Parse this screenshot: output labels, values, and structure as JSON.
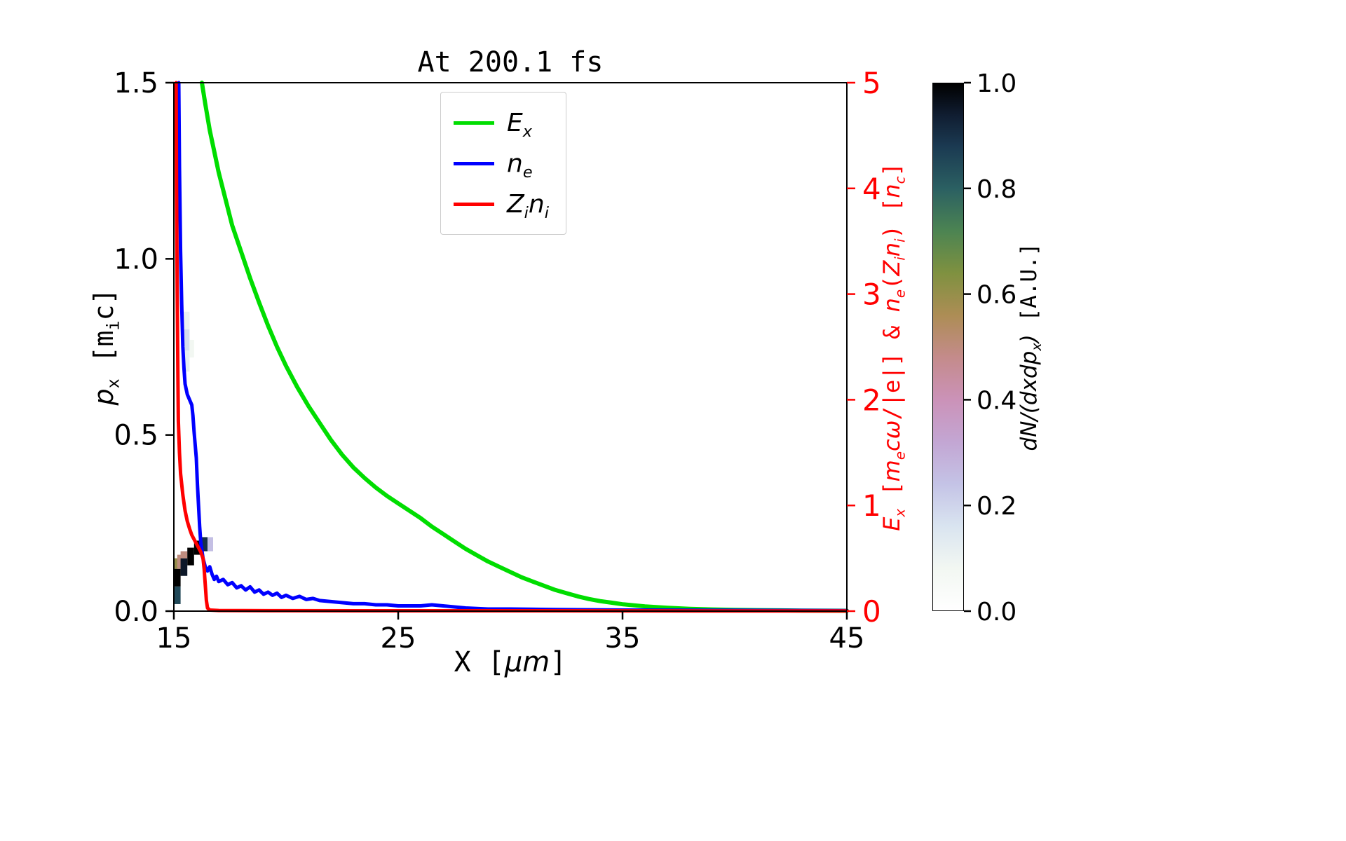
{
  "title": "At 200.1 fs",
  "axes": {
    "x": {
      "label_math": "X [*μm*]",
      "range": [
        15,
        45
      ],
      "tick_values": [
        15,
        25,
        35,
        45
      ],
      "tick_labels": [
        "15",
        "25",
        "35",
        "45"
      ]
    },
    "y_left": {
      "label_math": "*p*_{x} [m_{i}c]",
      "range": [
        0,
        1.5
      ],
      "tick_values": [
        0,
        0.5,
        1.0,
        1.5
      ],
      "tick_labels": [
        "0.0",
        "0.5",
        "1.0",
        "1.5"
      ]
    },
    "y_right": {
      "label_math": "*E_{x}* [*m_{e}cω*/|e|] & *n_{e}*(*Z_{i}n_{i}*) [*n_{c}*]",
      "range": [
        0,
        5
      ],
      "tick_values": [
        0,
        1,
        2,
        3,
        4,
        5
      ],
      "tick_labels": [
        "0",
        "1",
        "2",
        "3",
        "4",
        "5"
      ],
      "color": "#ff0000"
    }
  },
  "colorbar": {
    "label_math": "*dN/(dxdp_{x})* [A.U.]",
    "range": [
      0,
      1
    ],
    "tick_values": [
      0,
      0.2,
      0.4,
      0.6,
      0.8,
      1.0
    ],
    "tick_labels": [
      "0.0",
      "0.2",
      "0.4",
      "0.6",
      "0.8",
      "1.0"
    ],
    "colormap_stops": [
      [
        0.0,
        "#ffffff"
      ],
      [
        0.08,
        "#f2f7f2"
      ],
      [
        0.16,
        "#d9e4f0"
      ],
      [
        0.24,
        "#c4c3e6"
      ],
      [
        0.32,
        "#c3a6d3"
      ],
      [
        0.4,
        "#cb92b8"
      ],
      [
        0.48,
        "#c48b8b"
      ],
      [
        0.56,
        "#ad8d55"
      ],
      [
        0.64,
        "#7f9140"
      ],
      [
        0.72,
        "#4c8452"
      ],
      [
        0.8,
        "#2b6062"
      ],
      [
        0.88,
        "#1b3a52"
      ],
      [
        0.94,
        "#101d31"
      ],
      [
        1.0,
        "#000000"
      ]
    ]
  },
  "chart_data": {
    "type": "line",
    "title": "At 200.1 fs",
    "xlabel": "X [μm]",
    "ylabel_left": "p_x [m_i c]",
    "ylabel_right": "E_x [m_e c ω/|e|] & n_e(Z_i n_i) [n_c]",
    "xlim": [
      15,
      45
    ],
    "ylim_left": [
      0,
      1.5
    ],
    "ylim_right": [
      0,
      5
    ],
    "legend_position": "upper center",
    "series": [
      {
        "name": "E_x",
        "label_math": "*E_{x}*",
        "color": "#00dd00",
        "axis": "right",
        "width": 6,
        "points": [
          [
            16.25,
            5.0
          ],
          [
            16.4,
            4.8
          ],
          [
            16.6,
            4.55
          ],
          [
            16.8,
            4.35
          ],
          [
            17.0,
            4.15
          ],
          [
            17.3,
            3.9
          ],
          [
            17.6,
            3.65
          ],
          [
            18.0,
            3.4
          ],
          [
            18.4,
            3.15
          ],
          [
            18.8,
            2.92
          ],
          [
            19.2,
            2.7
          ],
          [
            19.6,
            2.5
          ],
          [
            20.0,
            2.32
          ],
          [
            20.5,
            2.12
          ],
          [
            21.0,
            1.94
          ],
          [
            21.5,
            1.78
          ],
          [
            22.0,
            1.62
          ],
          [
            22.5,
            1.48
          ],
          [
            23.0,
            1.36
          ],
          [
            23.5,
            1.26
          ],
          [
            24.0,
            1.17
          ],
          [
            24.5,
            1.09
          ],
          [
            25.0,
            1.02
          ],
          [
            25.5,
            0.95
          ],
          [
            26.0,
            0.88
          ],
          [
            26.5,
            0.8
          ],
          [
            27.0,
            0.73
          ],
          [
            27.5,
            0.66
          ],
          [
            28.0,
            0.59
          ],
          [
            28.5,
            0.53
          ],
          [
            29.0,
            0.47
          ],
          [
            29.5,
            0.42
          ],
          [
            30.0,
            0.37
          ],
          [
            30.5,
            0.32
          ],
          [
            31.0,
            0.28
          ],
          [
            31.5,
            0.24
          ],
          [
            32.0,
            0.2
          ],
          [
            32.5,
            0.17
          ],
          [
            33.0,
            0.14
          ],
          [
            33.5,
            0.115
          ],
          [
            34.0,
            0.095
          ],
          [
            34.5,
            0.08
          ],
          [
            35.0,
            0.065
          ],
          [
            35.5,
            0.055
          ],
          [
            36.0,
            0.045
          ],
          [
            37.0,
            0.032
          ],
          [
            38.0,
            0.022
          ],
          [
            39.0,
            0.016
          ],
          [
            40.0,
            0.012
          ],
          [
            41.0,
            0.009
          ],
          [
            42.0,
            0.007
          ],
          [
            43.0,
            0.005
          ],
          [
            44.0,
            0.004
          ],
          [
            45.0,
            0.003
          ]
        ]
      },
      {
        "name": "n_e",
        "label_math": "*n_{e}*",
        "color": "#0000ff",
        "axis": "right",
        "width": 5,
        "points": [
          [
            15.22,
            5.0
          ],
          [
            15.25,
            4.2
          ],
          [
            15.3,
            3.4
          ],
          [
            15.35,
            2.9
          ],
          [
            15.4,
            2.5
          ],
          [
            15.45,
            2.3
          ],
          [
            15.5,
            2.15
          ],
          [
            15.6,
            2.05
          ],
          [
            15.7,
            2.0
          ],
          [
            15.8,
            1.95
          ],
          [
            15.85,
            1.85
          ],
          [
            15.9,
            1.7
          ],
          [
            16.0,
            1.45
          ],
          [
            16.05,
            1.2
          ],
          [
            16.1,
            1.0
          ],
          [
            16.15,
            0.8
          ],
          [
            16.2,
            0.65
          ],
          [
            16.3,
            0.5
          ],
          [
            16.4,
            0.42
          ],
          [
            16.5,
            0.38
          ],
          [
            16.6,
            0.42
          ],
          [
            16.7,
            0.35
          ],
          [
            16.8,
            0.3
          ],
          [
            16.9,
            0.33
          ],
          [
            17.0,
            0.28
          ],
          [
            17.2,
            0.3
          ],
          [
            17.4,
            0.25
          ],
          [
            17.6,
            0.27
          ],
          [
            17.8,
            0.22
          ],
          [
            18.0,
            0.24
          ],
          [
            18.2,
            0.2
          ],
          [
            18.4,
            0.23
          ],
          [
            18.6,
            0.18
          ],
          [
            18.8,
            0.2
          ],
          [
            19.0,
            0.16
          ],
          [
            19.2,
            0.18
          ],
          [
            19.4,
            0.15
          ],
          [
            19.6,
            0.17
          ],
          [
            19.8,
            0.13
          ],
          [
            20.0,
            0.15
          ],
          [
            20.3,
            0.12
          ],
          [
            20.6,
            0.14
          ],
          [
            20.9,
            0.11
          ],
          [
            21.2,
            0.12
          ],
          [
            21.5,
            0.1
          ],
          [
            22.0,
            0.09
          ],
          [
            22.5,
            0.08
          ],
          [
            23.0,
            0.07
          ],
          [
            23.5,
            0.07
          ],
          [
            24.0,
            0.06
          ],
          [
            24.5,
            0.06
          ],
          [
            25.0,
            0.05
          ],
          [
            25.5,
            0.05
          ],
          [
            26.0,
            0.05
          ],
          [
            26.5,
            0.06
          ],
          [
            27.0,
            0.05
          ],
          [
            27.5,
            0.04
          ],
          [
            28.0,
            0.03
          ],
          [
            29.0,
            0.02
          ],
          [
            30.0,
            0.02
          ],
          [
            32.0,
            0.015
          ],
          [
            35.0,
            0.01
          ],
          [
            40.0,
            0.008
          ],
          [
            45.0,
            0.005
          ]
        ]
      },
      {
        "name": "Z_i n_i",
        "label_math": "*Z_{i}n_{i}*",
        "color": "#ff0000",
        "axis": "right",
        "width": 5,
        "points": [
          [
            15.1,
            5.0
          ],
          [
            15.12,
            4.0
          ],
          [
            15.15,
            3.0
          ],
          [
            15.18,
            2.2
          ],
          [
            15.2,
            1.8
          ],
          [
            15.25,
            1.5
          ],
          [
            15.3,
            1.3
          ],
          [
            15.4,
            1.1
          ],
          [
            15.5,
            0.95
          ],
          [
            15.6,
            0.85
          ],
          [
            15.7,
            0.78
          ],
          [
            15.8,
            0.72
          ],
          [
            15.9,
            0.68
          ],
          [
            16.0,
            0.64
          ],
          [
            16.1,
            0.6
          ],
          [
            16.2,
            0.56
          ],
          [
            16.3,
            0.5
          ],
          [
            16.35,
            0.4
          ],
          [
            16.4,
            0.25
          ],
          [
            16.45,
            0.1
          ],
          [
            16.5,
            0.03
          ],
          [
            16.6,
            0.01
          ],
          [
            17.0,
            0.006
          ],
          [
            20.0,
            0.004
          ],
          [
            25.0,
            0.003
          ],
          [
            30.0,
            0.003
          ],
          [
            38.0,
            0.002
          ],
          [
            45.0,
            0.002
          ]
        ]
      }
    ],
    "heatmap": {
      "quantity": "dN/(dx dp_x) [A.U.]",
      "value_range": [
        0,
        1
      ],
      "cells": [
        [
          15.0,
          0.02,
          0.3,
          0.05,
          0.85
        ],
        [
          15.0,
          0.07,
          0.3,
          0.05,
          1.0
        ],
        [
          15.0,
          0.12,
          0.3,
          0.03,
          0.6
        ],
        [
          15.15,
          0.12,
          0.2,
          0.04,
          0.5
        ],
        [
          15.3,
          0.1,
          0.3,
          0.05,
          0.95
        ],
        [
          15.3,
          0.15,
          0.3,
          0.02,
          0.5
        ],
        [
          15.6,
          0.13,
          0.3,
          0.05,
          1.0
        ],
        [
          15.9,
          0.16,
          0.3,
          0.04,
          1.0
        ],
        [
          16.2,
          0.17,
          0.3,
          0.04,
          0.9
        ],
        [
          16.5,
          0.17,
          0.25,
          0.04,
          0.25
        ],
        [
          15.4,
          0.68,
          0.3,
          0.06,
          0.12
        ],
        [
          15.4,
          0.74,
          0.3,
          0.06,
          0.18
        ],
        [
          15.4,
          0.8,
          0.3,
          0.05,
          0.1
        ],
        [
          15.7,
          0.72,
          0.2,
          0.05,
          0.08
        ]
      ]
    }
  }
}
